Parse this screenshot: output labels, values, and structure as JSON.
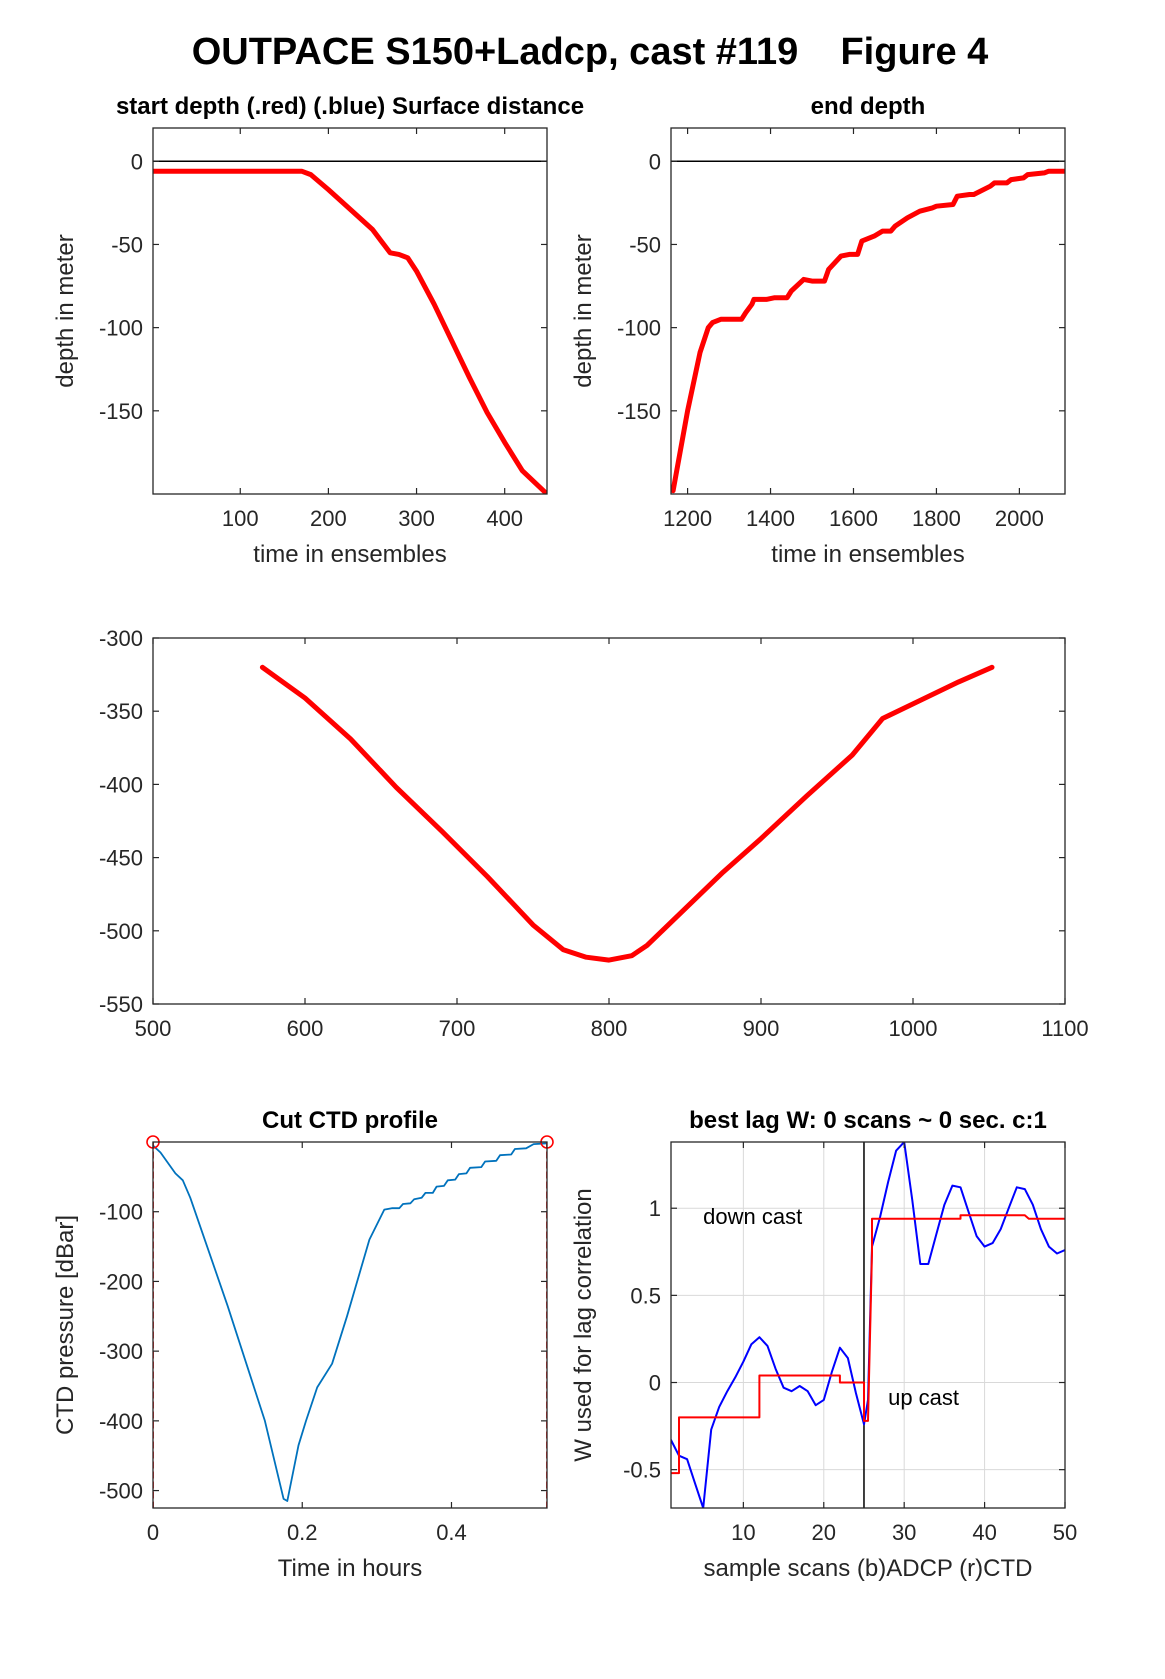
{
  "figure_title": "OUTPACE S150+Ladcp, cast #119    Figure 4",
  "colors": {
    "red": "#ff0000",
    "blue": "#0000ff",
    "steel": "#0072bd",
    "black": "#000000",
    "grid": "#d9d9d9"
  },
  "chart_data": [
    {
      "id": "start_depth",
      "type": "line",
      "title": "start depth (.red) (.blue) Surface distance",
      "xlabel": "time in ensembles",
      "ylabel": "depth in meter",
      "xlim": [
        1,
        448
      ],
      "ylim": [
        -200,
        20
      ],
      "xticks": [
        100,
        200,
        300,
        400
      ],
      "yticks": [
        0,
        -50,
        -100,
        -150
      ],
      "hlines": [
        0
      ],
      "series": [
        {
          "color": "red",
          "width": 5,
          "x": [
            1,
            50,
            100,
            150,
            170,
            180,
            200,
            225,
            250,
            270,
            280,
            290,
            300,
            320,
            340,
            360,
            380,
            400,
            420,
            448
          ],
          "y": [
            -6,
            -6,
            -6,
            -6,
            -6,
            -8,
            -17,
            -29,
            -41,
            -55,
            -56,
            -58,
            -66,
            -86,
            -108,
            -130,
            -151,
            -169,
            -186,
            -200
          ]
        }
      ]
    },
    {
      "id": "end_depth",
      "type": "line",
      "title": "end depth",
      "xlabel": "time in ensembles",
      "ylabel": "depth in meter",
      "xlim": [
        1160,
        2110
      ],
      "ylim": [
        -200,
        20
      ],
      "xticks": [
        1200,
        1400,
        1600,
        1800,
        2000
      ],
      "yticks": [
        0,
        -50,
        -100,
        -150
      ],
      "hlines": [
        0
      ],
      "series": [
        {
          "color": "red",
          "width": 5,
          "x": [
            1165,
            1200,
            1230,
            1250,
            1260,
            1280,
            1300,
            1330,
            1340,
            1355,
            1360,
            1390,
            1410,
            1440,
            1450,
            1480,
            1500,
            1530,
            1540,
            1570,
            1590,
            1610,
            1620,
            1650,
            1670,
            1690,
            1700,
            1730,
            1760,
            1790,
            1800,
            1840,
            1850,
            1880,
            1890,
            1930,
            1940,
            1970,
            1980,
            2010,
            2020,
            2060,
            2070,
            2110
          ],
          "y": [
            -198,
            -150,
            -115,
            -100,
            -97,
            -95,
            -95,
            -95,
            -91,
            -86,
            -83,
            -83,
            -82,
            -82,
            -78,
            -71,
            -72,
            -72,
            -65,
            -57,
            -56,
            -56,
            -48,
            -45,
            -42,
            -42,
            -39,
            -34,
            -30,
            -28,
            -27,
            -26,
            -21,
            -20,
            -20,
            -15,
            -13,
            -13,
            -11,
            -10,
            -8,
            -7,
            -6,
            -6
          ]
        }
      ]
    },
    {
      "id": "depth_curve",
      "type": "line",
      "title": "",
      "xlabel": "",
      "ylabel": "",
      "xlim": [
        500,
        1100
      ],
      "ylim": [
        -550,
        -300
      ],
      "xticks": [
        500,
        600,
        700,
        800,
        900,
        1000,
        1100
      ],
      "yticks": [
        -300,
        -350,
        -400,
        -450,
        -500,
        -550
      ],
      "series": [
        {
          "color": "red",
          "width": 5,
          "x": [
            572,
            600,
            630,
            660,
            690,
            720,
            750,
            770,
            785,
            800,
            815,
            825,
            850,
            875,
            900,
            930,
            960,
            980,
            1000,
            1030,
            1052
          ],
          "y": [
            -320,
            -341,
            -369,
            -402,
            -432,
            -463,
            -496,
            -513,
            -518,
            -520,
            -517,
            -510,
            -485,
            -460,
            -437,
            -408,
            -380,
            -355,
            -345,
            -330,
            -320
          ]
        }
      ]
    },
    {
      "id": "cut_ctd",
      "type": "line",
      "title": "Cut CTD profile",
      "xlabel": "Time in hours",
      "ylabel": "CTD pressure [dBar]",
      "xlim": [
        0,
        0.528
      ],
      "ylim": [
        -525,
        0
      ],
      "xticks": [
        0,
        0.2,
        0.4
      ],
      "xticklabels": [
        "0",
        "0.2",
        "0.4"
      ],
      "yticks": [
        -100,
        -200,
        -300,
        -400,
        -500
      ],
      "series": [
        {
          "color": "steel",
          "width": 1.8,
          "x": [
            0.0,
            0.01,
            0.02,
            0.03,
            0.04,
            0.05,
            0.1,
            0.15,
            0.175,
            0.18,
            0.195,
            0.205,
            0.22,
            0.24,
            0.26,
            0.29,
            0.31,
            0.32,
            0.33,
            0.335,
            0.345,
            0.35,
            0.36,
            0.365,
            0.375,
            0.38,
            0.39,
            0.395,
            0.405,
            0.41,
            0.42,
            0.425,
            0.44,
            0.445,
            0.46,
            0.465,
            0.48,
            0.485,
            0.5,
            0.51,
            0.528
          ],
          "y": [
            -5,
            -15,
            -30,
            -45,
            -55,
            -80,
            -235,
            -400,
            -512,
            -515,
            -435,
            -400,
            -352,
            -318,
            -250,
            -140,
            -97,
            -95,
            -95,
            -89,
            -88,
            -82,
            -80,
            -73,
            -73,
            -64,
            -63,
            -55,
            -54,
            -46,
            -45,
            -37,
            -36,
            -28,
            -27,
            -19,
            -18,
            -10,
            -9,
            -3,
            -2
          ]
        },
        {
          "color": "red",
          "width": 1.8,
          "dash": "6,4",
          "x": [
            0.0,
            0.0
          ],
          "y": [
            0,
            -525
          ]
        },
        {
          "color": "red",
          "width": 1.8,
          "dash": "6,4",
          "x": [
            0.528,
            0.528
          ],
          "y": [
            0,
            -525
          ]
        }
      ],
      "markers": [
        {
          "color": "red",
          "shape": "circle",
          "x": 0.0,
          "y": 0
        },
        {
          "color": "red",
          "shape": "circle",
          "x": 0.528,
          "y": 0
        }
      ]
    },
    {
      "id": "best_lag",
      "type": "line",
      "title": "best lag W: 0 scans ~ 0 sec.  c:1",
      "xlabel": "sample scans (b)ADCP (r)CTD",
      "ylabel": "W used for lag correlation",
      "xlim": [
        1,
        50
      ],
      "ylim": [
        -0.72,
        1.38
      ],
      "xticks": [
        10,
        20,
        30,
        40,
        50
      ],
      "yticks": [
        1,
        0.5,
        0,
        -0.5
      ],
      "yticklabels": [
        "1",
        "0.5",
        "0",
        "-0.5"
      ],
      "grid": true,
      "vlines": [
        25
      ],
      "annotations": [
        {
          "text": "down cast",
          "x": 5,
          "y": 0.91
        },
        {
          "text": "up cast",
          "x": 28,
          "y": -0.13
        }
      ],
      "series": [
        {
          "color": "blue",
          "width": 2,
          "x": [
            1,
            2,
            3,
            4,
            5,
            6,
            7,
            8,
            9,
            10,
            11,
            12,
            13,
            14,
            15,
            16,
            17,
            18,
            19,
            20,
            21,
            22,
            23,
            24,
            25,
            25.5,
            26,
            27,
            28,
            29,
            30,
            31,
            32,
            33,
            34,
            35,
            36,
            37,
            38,
            39,
            40,
            41,
            42,
            43,
            44,
            45,
            46,
            47,
            48,
            49,
            50
          ],
          "y": [
            -0.33,
            -0.42,
            -0.44,
            -0.58,
            -0.72,
            -0.27,
            -0.14,
            -0.05,
            0.03,
            0.12,
            0.22,
            0.26,
            0.21,
            0.08,
            -0.03,
            -0.05,
            -0.02,
            -0.05,
            -0.13,
            -0.1,
            0.06,
            0.2,
            0.14,
            -0.06,
            -0.24,
            -0.1,
            0.78,
            0.95,
            1.15,
            1.33,
            1.38,
            1.05,
            0.68,
            0.68,
            0.85,
            1.02,
            1.13,
            1.12,
            0.98,
            0.84,
            0.78,
            0.8,
            0.88,
            1.0,
            1.12,
            1.11,
            1.02,
            0.88,
            0.78,
            0.74,
            0.76
          ]
        },
        {
          "color": "red",
          "width": 2,
          "x": [
            1,
            2,
            2,
            12,
            12,
            22,
            22,
            25,
            25,
            25.5,
            26,
            26,
            37,
            37,
            45,
            45.5,
            50
          ],
          "y": [
            -0.52,
            -0.52,
            -0.2,
            -0.2,
            0.04,
            0.04,
            0.0,
            0.0,
            -0.22,
            -0.22,
            0.75,
            0.94,
            0.94,
            0.96,
            0.96,
            0.94,
            0.94
          ]
        }
      ]
    }
  ]
}
